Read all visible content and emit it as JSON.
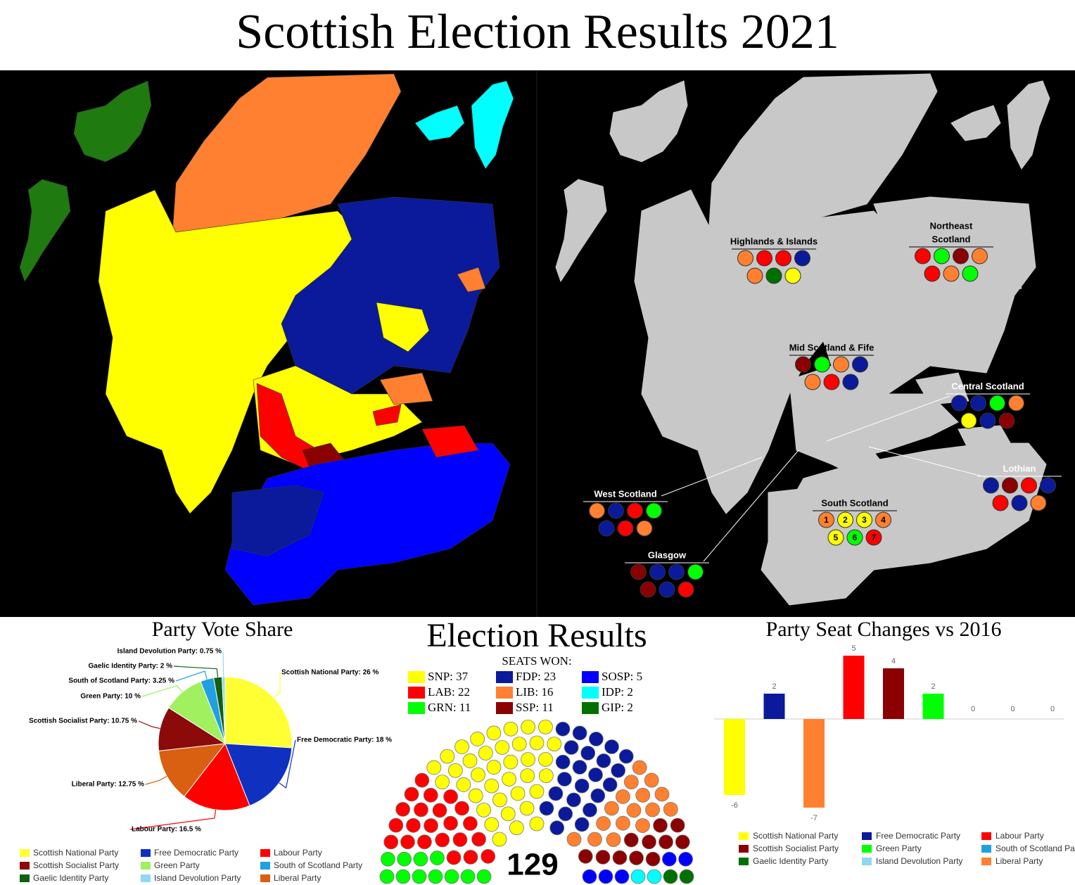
{
  "title": "Scottish Election Results 2021",
  "regions": [
    {
      "lines": [
        "Highlands & Islands"
      ],
      "seats": [
        "#ff8030",
        "#ff0000",
        "#ff0000",
        "#0a1a9a",
        "#ff8030",
        "#007000",
        "#ffff00"
      ]
    },
    {
      "lines": [
        "Northeast",
        "Scotland"
      ],
      "seats": [
        "#ff0000",
        "#00ff00",
        "#8b0000",
        "#ff8030",
        "#ff0000",
        "#ff8030",
        "#00ff00"
      ]
    },
    {
      "lines": [
        "Mid Scotland & Fife"
      ],
      "seats": [
        "#8b0000",
        "#00ff00",
        "#ff8030",
        "#0a1a9a",
        "#ff8030",
        "#ff0000",
        "#0a1a9a"
      ]
    },
    {
      "lines": [
        "Central Scotland"
      ],
      "seats": [
        "#0a1a9a",
        "#0a1a9a",
        "#00ff00",
        "#ff8030",
        "#ffff00",
        "#0a1a9a",
        "#8b0000"
      ]
    },
    {
      "lines": [
        "Lothian"
      ],
      "seats": [
        "#0a1a9a",
        "#8b0000",
        "#ff0000",
        "#0a1a9a",
        "#ff0000",
        "#0a1a9a",
        "#ff8030"
      ]
    },
    {
      "lines": [
        "West Scotland"
      ],
      "seats": [
        "#ff8030",
        "#0a1a9a",
        "#ff0000",
        "#00ff00",
        "#0a1a9a",
        "#ff0000",
        "#ff8030"
      ]
    },
    {
      "lines": [
        "Glasgow"
      ],
      "seats": [
        "#8b0000",
        "#0a1a9a",
        "#0a1a9a",
        "#00ff00",
        "#8b0000",
        "#0a1a9a",
        "#ff0000"
      ]
    },
    {
      "lines": [
        "South Scotland"
      ],
      "seats": [
        "#ff8030",
        "#ffff00",
        "#ffff00",
        "#ff8030",
        "#ffff00",
        "#00ff00",
        "#ff0000"
      ],
      "numbers": [
        1,
        2,
        3,
        4,
        5,
        6,
        7
      ]
    }
  ],
  "chart_data": [
    {
      "type": "pie",
      "title": "Party Vote Share",
      "categories": [
        "Scottish National Party",
        "Free Democratic Party",
        "Labour Party",
        "Liberal Party",
        "Scottish Socialist Party",
        "Green Party",
        "South of Scotland Party",
        "Gaelic Identity Party",
        "Island Devolution Party"
      ],
      "values": [
        26,
        18,
        16.5,
        12.75,
        10.75,
        10,
        3.25,
        2,
        0.75
      ],
      "value_labels": [
        "Scottish National Party: 26 %",
        "Free Democratic Party: 18 %",
        "Labour Party: 16.5 %",
        "Liberal Party: 12.75 %",
        "Scottish Socialist Party: 10.75 %",
        "Green Party: 10 %",
        "South of Scotland Party: 3.25 %",
        "Gaelic Identity Party: 2 %",
        "Island Devolution Party: 0.75 %"
      ],
      "colors": [
        "#ffff33",
        "#1030c0",
        "#ff0000",
        "#d86010",
        "#8b0a0a",
        "#a0f060",
        "#20a0e0",
        "#106010",
        "#90d8f0"
      ]
    },
    {
      "type": "parliament",
      "title": "Election Results",
      "subtitle": "SEATS WON:",
      "total": 129,
      "values": [
        37,
        23,
        5,
        22,
        16,
        2,
        11,
        11,
        2
      ],
      "value_labels": [
        "SNP: 37",
        "FDP: 23",
        "SOSP: 5",
        "LAB: 22",
        "LIB: 16",
        "IDP: 2",
        "GRN: 11",
        "SSP: 11",
        "GIP: 2"
      ],
      "colors": [
        "#ffff00",
        "#0a1a9a",
        "#0000ff",
        "#ff0000",
        "#ff8030",
        "#00ffff",
        "#00ff00",
        "#8b0000",
        "#007000"
      ]
    },
    {
      "type": "bar",
      "title": "Party Seat Changes vs 2016",
      "categories": [
        "Scottish National Party",
        "Free Democratic Party",
        "Liberal Party",
        "Labour Party",
        "Scottish Socialist Party",
        "Green Party",
        "South of Scotland Party",
        "Gaelic Identity Party",
        "Island Devolution Party"
      ],
      "values": [
        -6,
        2,
        -7,
        5,
        4,
        2,
        0,
        0,
        0
      ],
      "colors": [
        "#ffff00",
        "#0a1a9a",
        "#ff8030",
        "#ff0000",
        "#8b0000",
        "#00ff00",
        "#20a0e0",
        "#007000",
        "#90d8f0"
      ]
    }
  ]
}
